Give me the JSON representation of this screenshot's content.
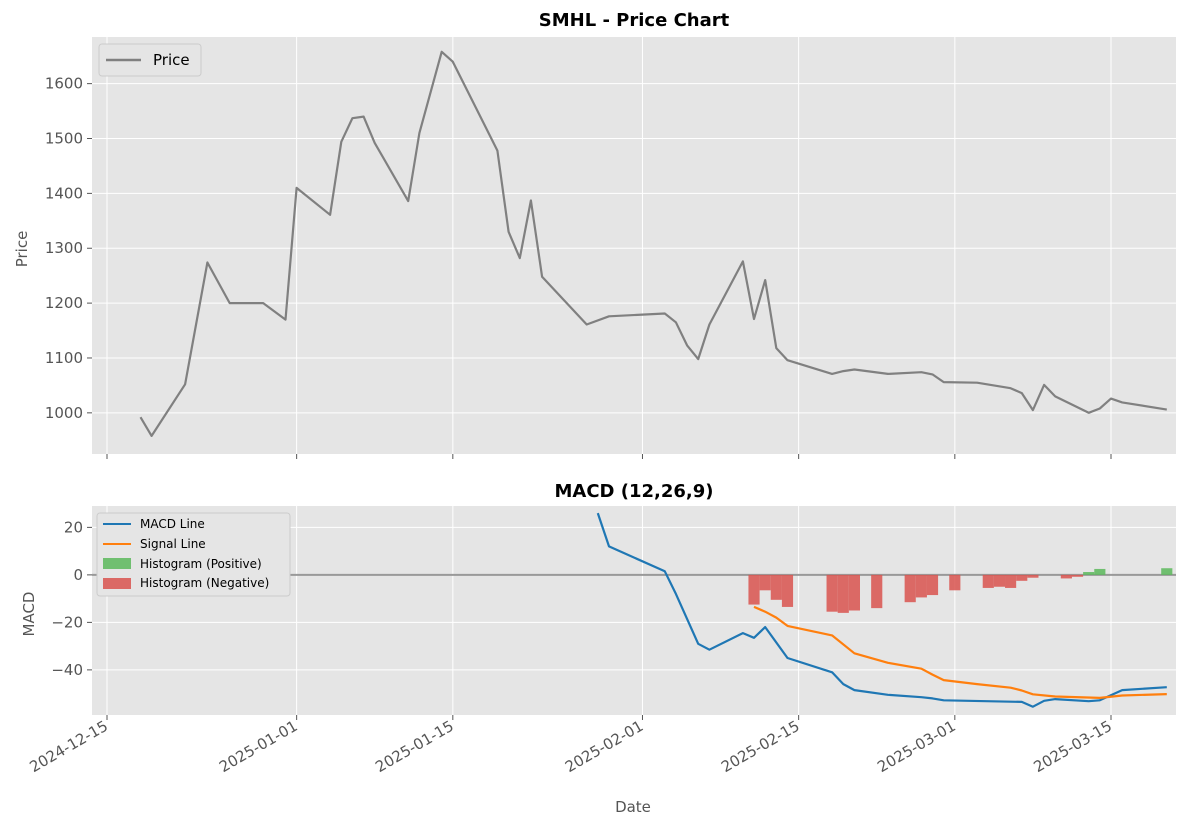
{
  "chart_data": [
    {
      "type": "line",
      "title": "SMHL - Price Chart",
      "xlabel": "",
      "ylabel": "Price",
      "ylim": [
        925,
        1685
      ],
      "yticks": [
        1000,
        1100,
        1200,
        1300,
        1400,
        1500,
        1600
      ],
      "grid": true,
      "legend": "top-left",
      "series": [
        {
          "name": "Price",
          "color": "#808080",
          "points": [
            [
              "2024-12-18",
              992
            ],
            [
              "2024-12-19",
              958
            ],
            [
              "2024-12-22",
              1052
            ],
            [
              "2024-12-24",
              1274
            ],
            [
              "2024-12-26",
              1200
            ],
            [
              "2024-12-29",
              1200
            ],
            [
              "2024-12-31",
              1170
            ],
            [
              "2025-01-01",
              1410
            ],
            [
              "2025-01-04",
              1361
            ],
            [
              "2025-01-05",
              1494
            ],
            [
              "2025-01-06",
              1537
            ],
            [
              "2025-01-07",
              1540
            ],
            [
              "2025-01-08",
              1492
            ],
            [
              "2025-01-11",
              1386
            ],
            [
              "2025-01-12",
              1510
            ],
            [
              "2025-01-14",
              1658
            ],
            [
              "2025-01-15",
              1640
            ],
            [
              "2025-01-19",
              1478
            ],
            [
              "2025-01-20",
              1330
            ],
            [
              "2025-01-21",
              1282
            ],
            [
              "2025-01-22",
              1387
            ],
            [
              "2025-01-23",
              1248
            ],
            [
              "2025-01-27",
              1161
            ],
            [
              "2025-01-29",
              1176
            ],
            [
              "2025-02-03",
              1181
            ],
            [
              "2025-02-04",
              1165
            ],
            [
              "2025-02-05",
              1123
            ],
            [
              "2025-02-06",
              1098
            ],
            [
              "2025-02-07",
              1161
            ],
            [
              "2025-02-10",
              1276
            ],
            [
              "2025-02-11",
              1171
            ],
            [
              "2025-02-12",
              1242
            ],
            [
              "2025-02-13",
              1118
            ],
            [
              "2025-02-14",
              1096
            ],
            [
              "2025-02-18",
              1071
            ],
            [
              "2025-02-19",
              1076
            ],
            [
              "2025-02-20",
              1079
            ],
            [
              "2025-02-23",
              1071
            ],
            [
              "2025-02-26",
              1074
            ],
            [
              "2025-02-27",
              1070
            ],
            [
              "2025-02-28",
              1056
            ],
            [
              "2025-03-03",
              1055
            ],
            [
              "2025-03-06",
              1045
            ],
            [
              "2025-03-07",
              1036
            ],
            [
              "2025-03-08",
              1005
            ],
            [
              "2025-03-09",
              1051
            ],
            [
              "2025-03-10",
              1030
            ],
            [
              "2025-03-13",
              1000
            ],
            [
              "2025-03-14",
              1008
            ],
            [
              "2025-03-15",
              1026
            ],
            [
              "2025-03-16",
              1019
            ],
            [
              "2025-03-20",
              1006
            ]
          ]
        }
      ],
      "xticks": [
        "2024-12-15",
        "2025-01-01",
        "2025-01-15",
        "2025-02-01",
        "2025-02-15",
        "2025-03-01",
        "2025-03-15"
      ]
    },
    {
      "type": "line",
      "title": "MACD (12,26,9)",
      "xlabel": "Date",
      "ylabel": "MACD",
      "ylim": [
        -59,
        29
      ],
      "yticks": [
        -40,
        -20,
        0,
        20
      ],
      "grid": true,
      "legend": "top-left",
      "zero_line": true,
      "series": [
        {
          "name": "MACD Line",
          "color": "#1f77b4",
          "points": [
            [
              "2025-01-28",
              26
            ],
            [
              "2025-01-29",
              12
            ],
            [
              "2025-02-03",
              1.5
            ],
            [
              "2025-02-04",
              -8
            ],
            [
              "2025-02-06",
              -29
            ],
            [
              "2025-02-07",
              -31.5
            ],
            [
              "2025-02-10",
              -24.5
            ],
            [
              "2025-02-11",
              -26.5
            ],
            [
              "2025-02-12",
              -22
            ],
            [
              "2025-02-14",
              -35
            ],
            [
              "2025-02-18",
              -41
            ],
            [
              "2025-02-19",
              -46
            ],
            [
              "2025-02-20",
              -48.5
            ],
            [
              "2025-02-23",
              -50.5
            ],
            [
              "2025-02-26",
              -51.5
            ],
            [
              "2025-02-27",
              -52
            ],
            [
              "2025-02-28",
              -52.8
            ],
            [
              "2025-03-07",
              -53.5
            ],
            [
              "2025-03-08",
              -55.5
            ],
            [
              "2025-03-09",
              -53
            ],
            [
              "2025-03-10",
              -52.3
            ],
            [
              "2025-03-13",
              -53.2
            ],
            [
              "2025-03-14",
              -52.8
            ],
            [
              "2025-03-16",
              -48.5
            ],
            [
              "2025-03-20",
              -47.3
            ]
          ]
        },
        {
          "name": "Signal Line",
          "color": "#ff7f0e",
          "points": [
            [
              "2025-02-11",
              -13.5
            ],
            [
              "2025-02-12",
              -15.5
            ],
            [
              "2025-02-13",
              -18
            ],
            [
              "2025-02-14",
              -21.5
            ],
            [
              "2025-02-18",
              -25.5
            ],
            [
              "2025-02-20",
              -33
            ],
            [
              "2025-02-23",
              -37
            ],
            [
              "2025-02-26",
              -39.5
            ],
            [
              "2025-02-27",
              -42
            ],
            [
              "2025-02-28",
              -44.3
            ],
            [
              "2025-03-03",
              -46
            ],
            [
              "2025-03-06",
              -47.5
            ],
            [
              "2025-03-07",
              -48.7
            ],
            [
              "2025-03-08",
              -50.3
            ],
            [
              "2025-03-10",
              -51.2
            ],
            [
              "2025-03-14",
              -51.8
            ],
            [
              "2025-03-16",
              -50.8
            ],
            [
              "2025-03-20",
              -50.2
            ]
          ]
        }
      ],
      "histogram": [
        [
          "2025-02-11",
          -12.5
        ],
        [
          "2025-02-12",
          -6.5
        ],
        [
          "2025-02-13",
          -10.5
        ],
        [
          "2025-02-14",
          -13.5
        ],
        [
          "2025-02-18",
          -15.5
        ],
        [
          "2025-02-19",
          -16
        ],
        [
          "2025-02-20",
          -15
        ],
        [
          "2025-02-22",
          -14
        ],
        [
          "2025-02-25",
          -11.5
        ],
        [
          "2025-02-26",
          -9.5
        ],
        [
          "2025-02-27",
          -8.5
        ],
        [
          "2025-03-01",
          -6.5
        ],
        [
          "2025-03-04",
          -5.5
        ],
        [
          "2025-03-05",
          -5
        ],
        [
          "2025-03-06",
          -5.5
        ],
        [
          "2025-03-07",
          -2.5
        ],
        [
          "2025-03-08",
          -1.2
        ],
        [
          "2025-03-11",
          -1.5
        ],
        [
          "2025-03-12",
          -0.8
        ],
        [
          "2025-03-13",
          1.2
        ],
        [
          "2025-03-14",
          2.5
        ],
        [
          "2025-03-20",
          2.8
        ]
      ],
      "histogram_legend": {
        "positive": "Histogram (Positive)",
        "negative": "Histogram (Negative)"
      },
      "histogram_colors": {
        "positive": "#5cb85c",
        "negative": "#d9534f"
      },
      "xticks": [
        "2024-12-15",
        "2025-01-01",
        "2025-01-15",
        "2025-02-01",
        "2025-02-15",
        "2025-03-01",
        "2025-03-15"
      ]
    }
  ]
}
